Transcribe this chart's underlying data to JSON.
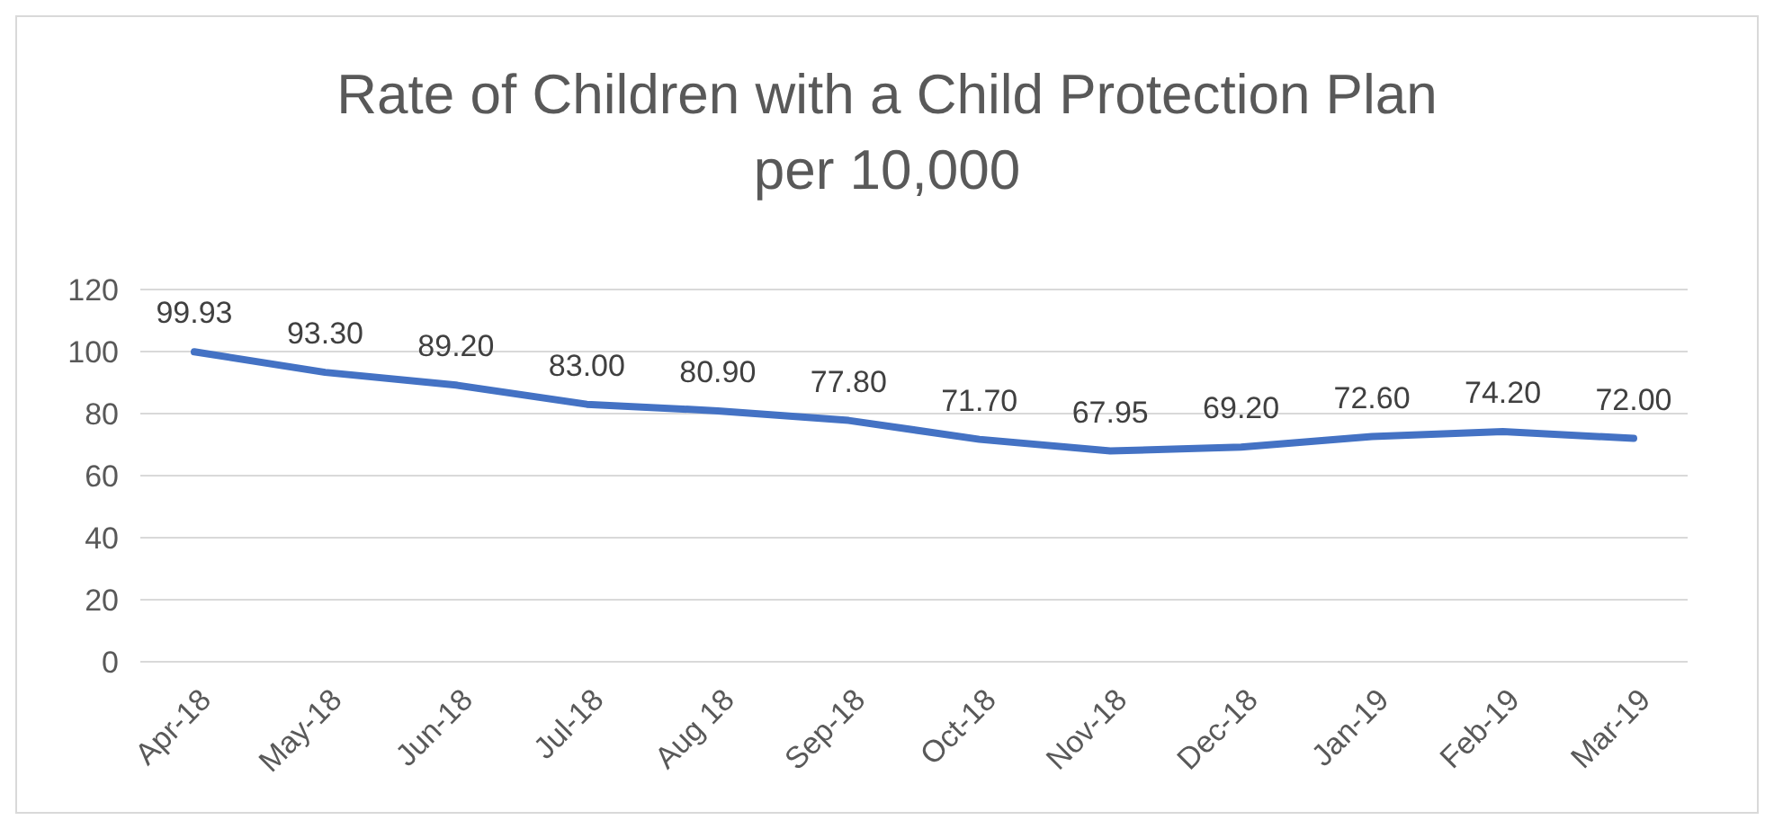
{
  "chart_data": {
    "type": "line",
    "title": "Rate of Children with a Child Protection Plan per 10,000",
    "categories": [
      "Apr-18",
      "May-18",
      "Jun-18",
      "Jul-18",
      "Aug 18",
      "Sep-18",
      "Oct-18",
      "Nov-18",
      "Dec-18",
      "Jan-19",
      "Feb-19",
      "Mar-19"
    ],
    "series": [
      {
        "color": "#4472c4",
        "values": [
          99.93,
          93.3,
          89.2,
          83,
          80.9,
          77.8,
          71.7,
          67.95,
          69.2,
          72.6,
          74.2,
          72
        ],
        "value_labels": [
          "99.93",
          "93.30",
          "89.20",
          "83.00",
          "80.90",
          "77.80",
          "71.70",
          "67.95",
          "69.20",
          "72.60",
          "74.20",
          "72.00"
        ]
      }
    ],
    "ylim": [
      0,
      120
    ],
    "yticks": [
      0,
      20,
      40,
      60,
      80,
      100,
      120
    ],
    "grid": "y",
    "marker": "none",
    "line_style": "solid"
  }
}
